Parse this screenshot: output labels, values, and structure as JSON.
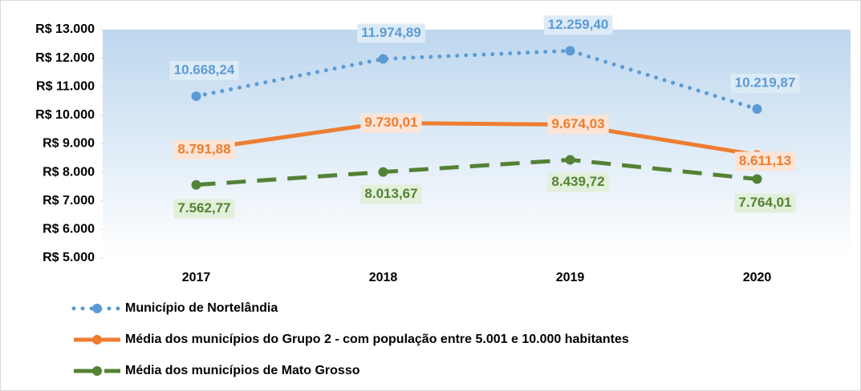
{
  "chart_data": {
    "type": "line",
    "categories": [
      "2017",
      "2018",
      "2019",
      "2020"
    ],
    "ylim": [
      5000,
      13000
    ],
    "yticks": [
      {
        "value": 5000,
        "label": "R$ 5.000"
      },
      {
        "value": 6000,
        "label": "R$ 6.000"
      },
      {
        "value": 7000,
        "label": "R$ 7.000"
      },
      {
        "value": 8000,
        "label": "R$ 8.000"
      },
      {
        "value": 9000,
        "label": "R$ 9.000"
      },
      {
        "value": 10000,
        "label": "R$ 10.000"
      },
      {
        "value": 11000,
        "label": "R$ 11.000"
      },
      {
        "value": 12000,
        "label": "R$ 12.000"
      },
      {
        "value": 13000,
        "label": "R$ 13.000"
      }
    ],
    "legend": "bottom",
    "series": [
      {
        "name": "Município de Nortelândia",
        "color": "#5b9bd5",
        "line_style": "dotted",
        "values": [
          10668.24,
          11974.89,
          12259.4,
          10219.87
        ],
        "value_labels": [
          "10.668,24",
          "11.974,89",
          "12.259,40",
          "10.219,87"
        ]
      },
      {
        "name": "Média dos municípios do Grupo 2 - com população entre 5.001 e 10.000 habitantes",
        "color": "#ed7d31",
        "line_style": "solid",
        "values": [
          8791.88,
          9730.01,
          9674.03,
          8611.13
        ],
        "value_labels": [
          "8.791,88",
          "9.730,01",
          "9.674,03",
          "8.611,13"
        ]
      },
      {
        "name": "Média dos municípios de Mato Grosso",
        "color": "#548235",
        "line_style": "dashed",
        "values": [
          7562.77,
          8013.67,
          8439.72,
          7764.01
        ],
        "value_labels": [
          "7.562,77",
          "8.013,67",
          "8.439,72",
          "7.764,01"
        ]
      }
    ]
  }
}
